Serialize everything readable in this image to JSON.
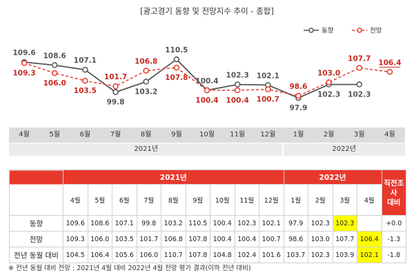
{
  "title": "[광고경기 동향 및 전망지수 추이 - 종합]",
  "chart_data": {
    "type": "line",
    "x": [
      "4월",
      "5월",
      "6월",
      "7월",
      "8월",
      "9월",
      "10월",
      "11월",
      "12월",
      "1월",
      "2월",
      "3월",
      "4월"
    ],
    "x_groups": [
      {
        "label": "2021년",
        "months": 9
      },
      {
        "label": "2022년",
        "months": 4
      }
    ],
    "series": [
      {
        "name": "동향",
        "color": "#555555",
        "dash": "solid",
        "values": [
          109.6,
          108.6,
          107.1,
          99.8,
          103.2,
          110.5,
          100.4,
          102.3,
          102.1,
          97.9,
          102.3,
          102.3,
          null
        ]
      },
      {
        "name": "전망",
        "color": "#e8382c",
        "dash": "dashed",
        "values": [
          109.3,
          106.0,
          103.5,
          101.7,
          106.8,
          107.8,
          100.4,
          100.4,
          100.7,
          98.6,
          103.0,
          107.7,
          106.4
        ]
      }
    ],
    "legend_position": "top-right"
  },
  "table": {
    "year_headers": [
      {
        "label": "2021년"
      },
      {
        "label": "2022년"
      }
    ],
    "diff_header": [
      "직전조사",
      "대비"
    ],
    "months": [
      "4월",
      "5월",
      "6월",
      "7월",
      "8월",
      "9월",
      "10월",
      "11월",
      "12월",
      "1월",
      "2월",
      "3월",
      "4월"
    ],
    "rows": [
      {
        "label": "동향",
        "values": [
          "109.6",
          "108.6",
          "107.1",
          "99.8",
          "103.2",
          "110.5",
          "100.4",
          "102.3",
          "102.1",
          "97.9",
          "102.3",
          "102.3",
          ""
        ],
        "diff": "+0.0"
      },
      {
        "label": "전망",
        "values": [
          "109.3",
          "106.0",
          "103.5",
          "101.7",
          "106.8",
          "107.8",
          "100.4",
          "100.4",
          "100.7",
          "98.6",
          "103.0",
          "107.7",
          "106.4"
        ],
        "diff": "-1.3"
      },
      {
        "label": "전년 동월 대비",
        "values": [
          "104.5",
          "106.4",
          "105.6",
          "106.0",
          "110.7",
          "107.8",
          "104.8",
          "102.4",
          "101.6",
          "103.7",
          "102.3",
          "103.9",
          "102.1"
        ],
        "diff": "-1.8"
      }
    ],
    "highlight_color": "#ffff00"
  },
  "note": "※ 전년 동월 대비 전망 : 2021년 4월 대비 2022년 4월 전망 평가 결과(이하 전년 대비)"
}
